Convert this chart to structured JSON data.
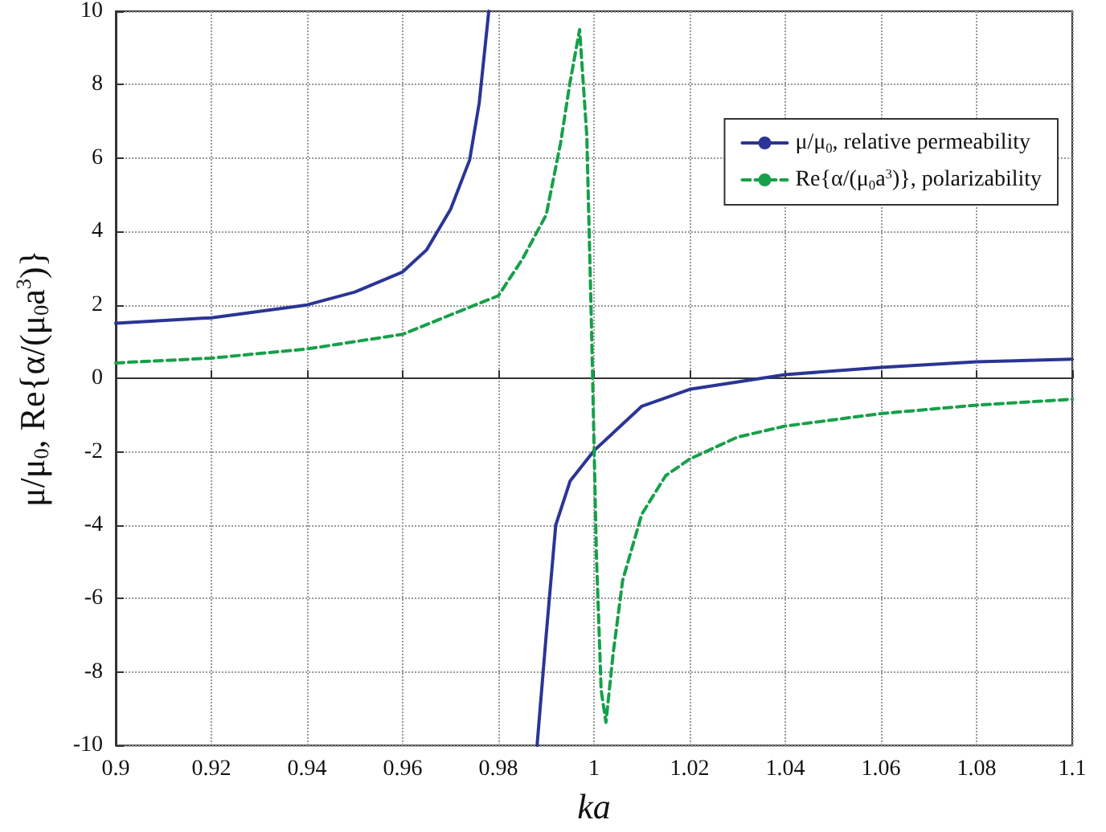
{
  "chart_data": {
    "type": "line",
    "xlabel": "ka",
    "ylabel": "μ/μ$_{0}$, Re{α/(μ$_{0}$a$^{3}$)}",
    "xlim": [
      0.9,
      1.1
    ],
    "ylim": [
      -10,
      10
    ],
    "xticks": [
      0.9,
      0.92,
      0.94,
      0.96,
      0.98,
      1,
      1.02,
      1.04,
      1.06,
      1.08,
      1.1
    ],
    "yticks": [
      -10,
      -8,
      -6,
      -4,
      -2,
      0,
      2,
      4,
      6,
      8,
      10
    ],
    "grid": true,
    "legend": "top right",
    "marker": "none",
    "series": [
      {
        "name": "μ/μ$_{0}$, relative permeability",
        "color": "#2b3595",
        "line_style": "solid",
        "x": [
          0.9,
          0.92,
          0.94,
          0.95,
          0.96,
          0.965,
          0.97,
          0.974,
          0.976,
          0.978,
          0.983,
          0.9881,
          0.99,
          0.992,
          0.995,
          1,
          1.01,
          1.02,
          1.04,
          1.06,
          1.08,
          1.1
        ],
        "values": [
          1.5,
          1.65,
          2.0,
          2.35,
          2.9,
          3.5,
          4.6,
          5.95,
          7.5,
          10,
          null,
          -10,
          -7.0,
          -4.0,
          -2.8,
          -1.97,
          -0.76,
          -0.3,
          0.1,
          0.3,
          0.45,
          0.52
        ]
      },
      {
        "name": "Re{α/(μ$_{0}$a$^{3}$)}, polarizability",
        "color": "#16a04a",
        "line_style": "dashed",
        "x": [
          0.9,
          0.92,
          0.94,
          0.96,
          0.97,
          0.98,
          0.985,
          0.99,
          0.993,
          0.995,
          0.997,
          0.9985,
          0.9995,
          1.0005,
          1.0015,
          1.0025,
          1.004,
          1.006,
          1.01,
          1.015,
          1.02,
          1.03,
          1.04,
          1.06,
          1.08,
          1.1
        ],
        "values": [
          0.42,
          0.55,
          0.8,
          1.2,
          1.73,
          2.25,
          3.24,
          4.45,
          6.4,
          8.07,
          9.5,
          6.6,
          1.3,
          -4.8,
          -8.5,
          -9.37,
          -7.5,
          -5.5,
          -3.7,
          -2.65,
          -2.2,
          -1.6,
          -1.3,
          -0.96,
          -0.73,
          -0.57
        ]
      }
    ]
  }
}
